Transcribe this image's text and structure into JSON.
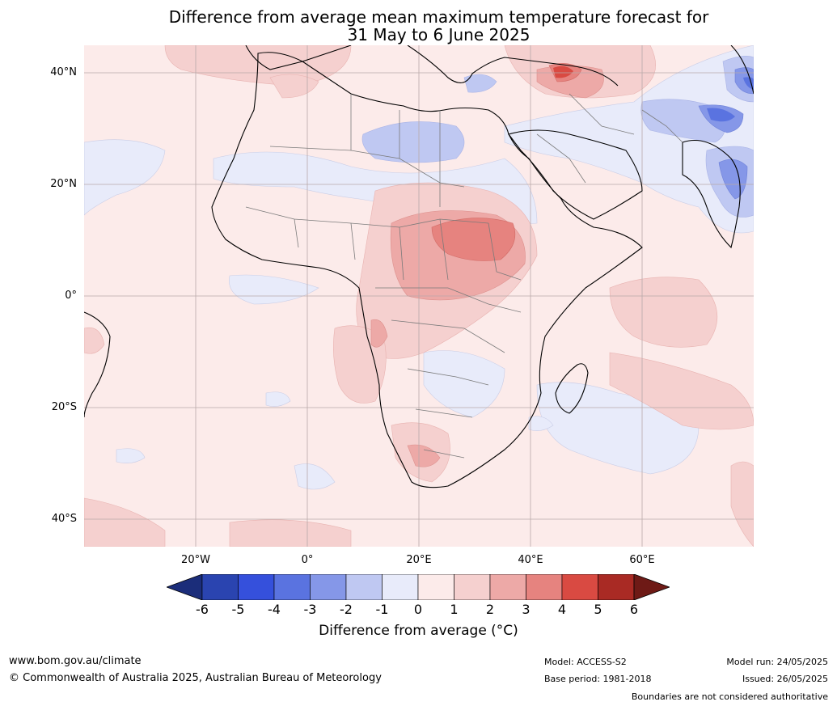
{
  "title": {
    "line1": "Difference from average mean maximum temperature forecast for",
    "line2": "31 May to 6 June 2025"
  },
  "axes": {
    "lat_labels": [
      "40°N",
      "20°N",
      "0°",
      "20°S",
      "40°S"
    ],
    "lon_labels": [
      "20°W",
      "0°",
      "20°E",
      "40°E",
      "60°E"
    ]
  },
  "colorbar": {
    "ticks": [
      "-6",
      "-5",
      "-4",
      "-3",
      "-2",
      "-1",
      "0",
      "1",
      "2",
      "3",
      "4",
      "5",
      "6"
    ],
    "colors": [
      "#1b2d7a",
      "#2a44b0",
      "#3550dc",
      "#5a73e0",
      "#8597e8",
      "#bfc8f2",
      "#e8ebfa",
      "#fcebea",
      "#f5d0cf",
      "#eda9a7",
      "#e6837f",
      "#d94a42",
      "#a92a24",
      "#6e1a16"
    ],
    "label": "Difference from average (°C)"
  },
  "footer": {
    "website": "www.bom.gov.au/climate",
    "copyright": "© Commonwealth of Australia 2025, Australian Bureau of Meteorology",
    "model": "Model: ACCESS-S2",
    "base_period": "Base period: 1981-2018",
    "model_run": "Model run: 24/05/2025",
    "issued": "Issued: 26/05/2025",
    "boundaries_note": "Boundaries are not considered authoritative"
  }
}
